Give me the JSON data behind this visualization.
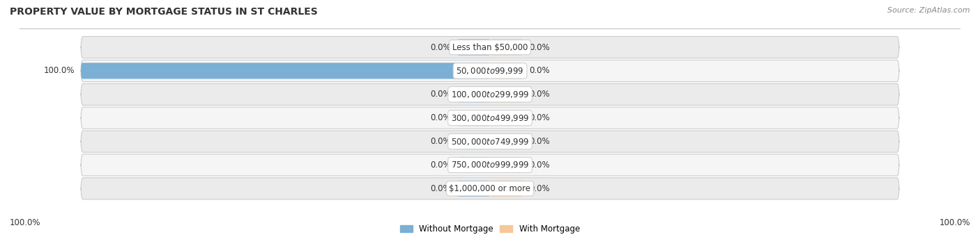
{
  "title": "PROPERTY VALUE BY MORTGAGE STATUS IN ST CHARLES",
  "source": "Source: ZipAtlas.com",
  "categories": [
    "Less than $50,000",
    "$50,000 to $99,999",
    "$100,000 to $299,999",
    "$300,000 to $499,999",
    "$500,000 to $749,999",
    "$750,000 to $999,999",
    "$1,000,000 or more"
  ],
  "without_mortgage": [
    0.0,
    100.0,
    0.0,
    0.0,
    0.0,
    0.0,
    0.0
  ],
  "with_mortgage": [
    0.0,
    0.0,
    0.0,
    0.0,
    0.0,
    0.0,
    0.0
  ],
  "without_mortgage_color": "#7BAFD4",
  "with_mortgage_color": "#F5C89A",
  "row_bg_even": "#EBEBEB",
  "row_bg_odd": "#F5F5F5",
  "title_fontsize": 10,
  "source_fontsize": 8,
  "label_fontsize": 8.5,
  "axis_label": "100.0%",
  "xlim": 100,
  "stub_size": 8
}
